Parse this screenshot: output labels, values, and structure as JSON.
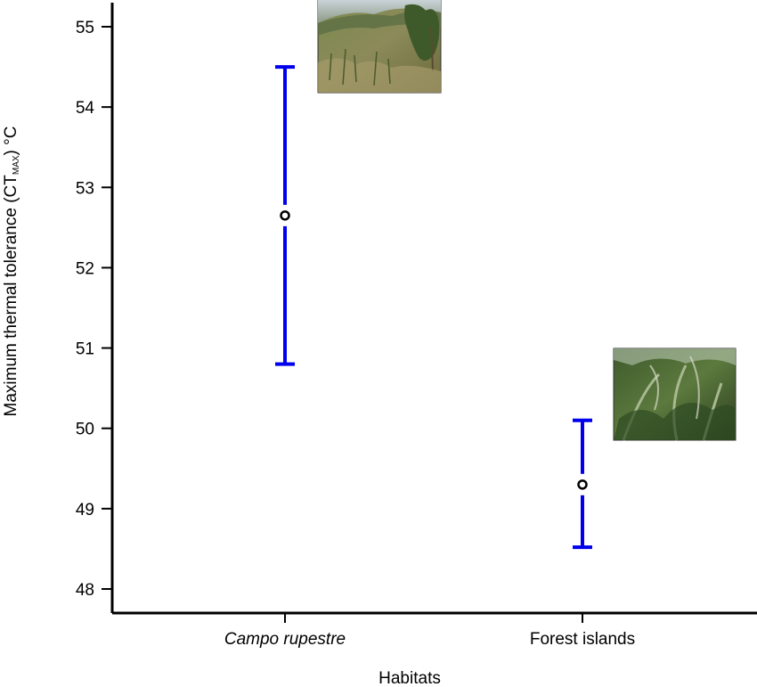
{
  "chart_data": {
    "type": "errorbar",
    "categories": [
      "Campo rupestre",
      "Forest islands"
    ],
    "category_italic": [
      true,
      false
    ],
    "series": [
      {
        "mean": [
          52.65,
          49.3
        ],
        "lower": [
          50.8,
          48.52
        ],
        "upper": [
          54.5,
          50.1
        ],
        "color": "#0000ee"
      }
    ],
    "ylim": [
      48,
      55
    ],
    "yticks": [
      "48",
      "49",
      "50",
      "51",
      "52",
      "53",
      "54",
      "55"
    ],
    "xlabel": "Habitats",
    "ylabel": {
      "prefix": "Maximum thermal tolerance (CT",
      "subscript": "MAX",
      "suffix": ") °C"
    },
    "photos": [
      {
        "category": "Campo rupestre",
        "subject": "open grassland"
      },
      {
        "category": "Forest islands",
        "subject": "dense forest"
      }
    ]
  }
}
